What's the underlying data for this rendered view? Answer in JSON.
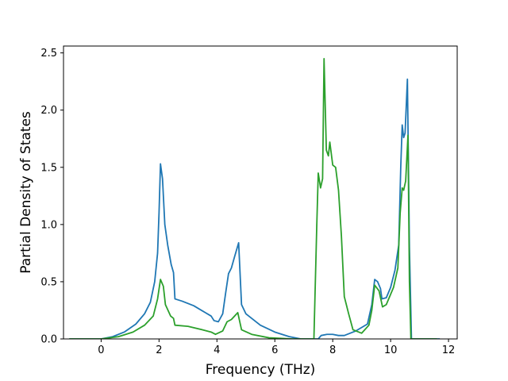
{
  "chart_data": {
    "type": "line",
    "title": "",
    "xlabel": "Frequency (THz)",
    "ylabel": "Partial Density of States",
    "xlim": [
      -1.3,
      12.3
    ],
    "ylim": [
      0,
      2.56
    ],
    "xticks": [
      0,
      2,
      4,
      6,
      8,
      10,
      12
    ],
    "xtick_labels": [
      "0",
      "2",
      "4",
      "6",
      "8",
      "10",
      "12"
    ],
    "yticks": [
      0.0,
      0.5,
      1.0,
      1.5,
      2.0,
      2.5
    ],
    "ytick_labels": [
      "0.0",
      "0.5",
      "1.0",
      "1.5",
      "2.0",
      "2.5"
    ],
    "grid": false,
    "legend": "none",
    "series": [
      {
        "color": "#1f77b4",
        "points": [
          [
            -1.1,
            0.0
          ],
          [
            0.0,
            0.0
          ],
          [
            0.4,
            0.02
          ],
          [
            0.8,
            0.06
          ],
          [
            1.2,
            0.13
          ],
          [
            1.5,
            0.22
          ],
          [
            1.7,
            0.32
          ],
          [
            1.85,
            0.5
          ],
          [
            1.95,
            0.75
          ],
          [
            2.0,
            1.1
          ],
          [
            2.05,
            1.53
          ],
          [
            2.12,
            1.4
          ],
          [
            2.2,
            1.0
          ],
          [
            2.3,
            0.82
          ],
          [
            2.42,
            0.65
          ],
          [
            2.5,
            0.58
          ],
          [
            2.55,
            0.35
          ],
          [
            2.8,
            0.33
          ],
          [
            3.2,
            0.29
          ],
          [
            3.6,
            0.23
          ],
          [
            3.8,
            0.2
          ],
          [
            3.9,
            0.16
          ],
          [
            4.05,
            0.15
          ],
          [
            4.2,
            0.22
          ],
          [
            4.3,
            0.4
          ],
          [
            4.4,
            0.57
          ],
          [
            4.5,
            0.62
          ],
          [
            4.6,
            0.71
          ],
          [
            4.75,
            0.84
          ],
          [
            4.85,
            0.3
          ],
          [
            5.0,
            0.22
          ],
          [
            5.5,
            0.12
          ],
          [
            6.0,
            0.06
          ],
          [
            6.5,
            0.02
          ],
          [
            6.9,
            0.0
          ],
          [
            7.4,
            0.0
          ],
          [
            7.5,
            0.0
          ],
          [
            7.6,
            0.03
          ],
          [
            7.8,
            0.04
          ],
          [
            8.0,
            0.04
          ],
          [
            8.2,
            0.03
          ],
          [
            8.4,
            0.03
          ],
          [
            8.8,
            0.07
          ],
          [
            9.2,
            0.13
          ],
          [
            9.35,
            0.3
          ],
          [
            9.45,
            0.52
          ],
          [
            9.55,
            0.5
          ],
          [
            9.65,
            0.44
          ],
          [
            9.7,
            0.35
          ],
          [
            9.85,
            0.36
          ],
          [
            10.0,
            0.45
          ],
          [
            10.15,
            0.6
          ],
          [
            10.28,
            0.82
          ],
          [
            10.35,
            1.5
          ],
          [
            10.4,
            1.87
          ],
          [
            10.45,
            1.76
          ],
          [
            10.5,
            1.8
          ],
          [
            10.58,
            2.27
          ],
          [
            10.65,
            0.8
          ],
          [
            10.72,
            0.0
          ],
          [
            11.7,
            0.0
          ]
        ]
      },
      {
        "color": "#2ca02c",
        "points": [
          [
            -1.1,
            0.0
          ],
          [
            0.0,
            0.0
          ],
          [
            0.6,
            0.02
          ],
          [
            1.1,
            0.06
          ],
          [
            1.5,
            0.12
          ],
          [
            1.8,
            0.2
          ],
          [
            1.95,
            0.35
          ],
          [
            2.05,
            0.52
          ],
          [
            2.15,
            0.46
          ],
          [
            2.22,
            0.3
          ],
          [
            2.4,
            0.2
          ],
          [
            2.5,
            0.18
          ],
          [
            2.55,
            0.12
          ],
          [
            3.0,
            0.11
          ],
          [
            3.5,
            0.08
          ],
          [
            3.8,
            0.06
          ],
          [
            3.95,
            0.04
          ],
          [
            4.2,
            0.07
          ],
          [
            4.35,
            0.15
          ],
          [
            4.5,
            0.17
          ],
          [
            4.72,
            0.23
          ],
          [
            4.85,
            0.08
          ],
          [
            5.2,
            0.04
          ],
          [
            5.8,
            0.01
          ],
          [
            6.6,
            0.0
          ],
          [
            7.35,
            0.0
          ],
          [
            7.45,
            1.0
          ],
          [
            7.5,
            1.45
          ],
          [
            7.58,
            1.32
          ],
          [
            7.65,
            1.4
          ],
          [
            7.7,
            2.45
          ],
          [
            7.78,
            1.65
          ],
          [
            7.85,
            1.6
          ],
          [
            7.9,
            1.72
          ],
          [
            8.0,
            1.52
          ],
          [
            8.1,
            1.5
          ],
          [
            8.2,
            1.3
          ],
          [
            8.3,
            0.9
          ],
          [
            8.4,
            0.37
          ],
          [
            8.55,
            0.22
          ],
          [
            8.7,
            0.08
          ],
          [
            9.0,
            0.05
          ],
          [
            9.25,
            0.12
          ],
          [
            9.35,
            0.25
          ],
          [
            9.45,
            0.47
          ],
          [
            9.6,
            0.42
          ],
          [
            9.72,
            0.28
          ],
          [
            9.85,
            0.3
          ],
          [
            10.1,
            0.45
          ],
          [
            10.25,
            0.62
          ],
          [
            10.33,
            1.1
          ],
          [
            10.4,
            1.32
          ],
          [
            10.45,
            1.3
          ],
          [
            10.52,
            1.38
          ],
          [
            10.6,
            1.78
          ],
          [
            10.65,
            0.5
          ],
          [
            10.7,
            0.0
          ],
          [
            11.6,
            0.0
          ]
        ]
      }
    ]
  }
}
